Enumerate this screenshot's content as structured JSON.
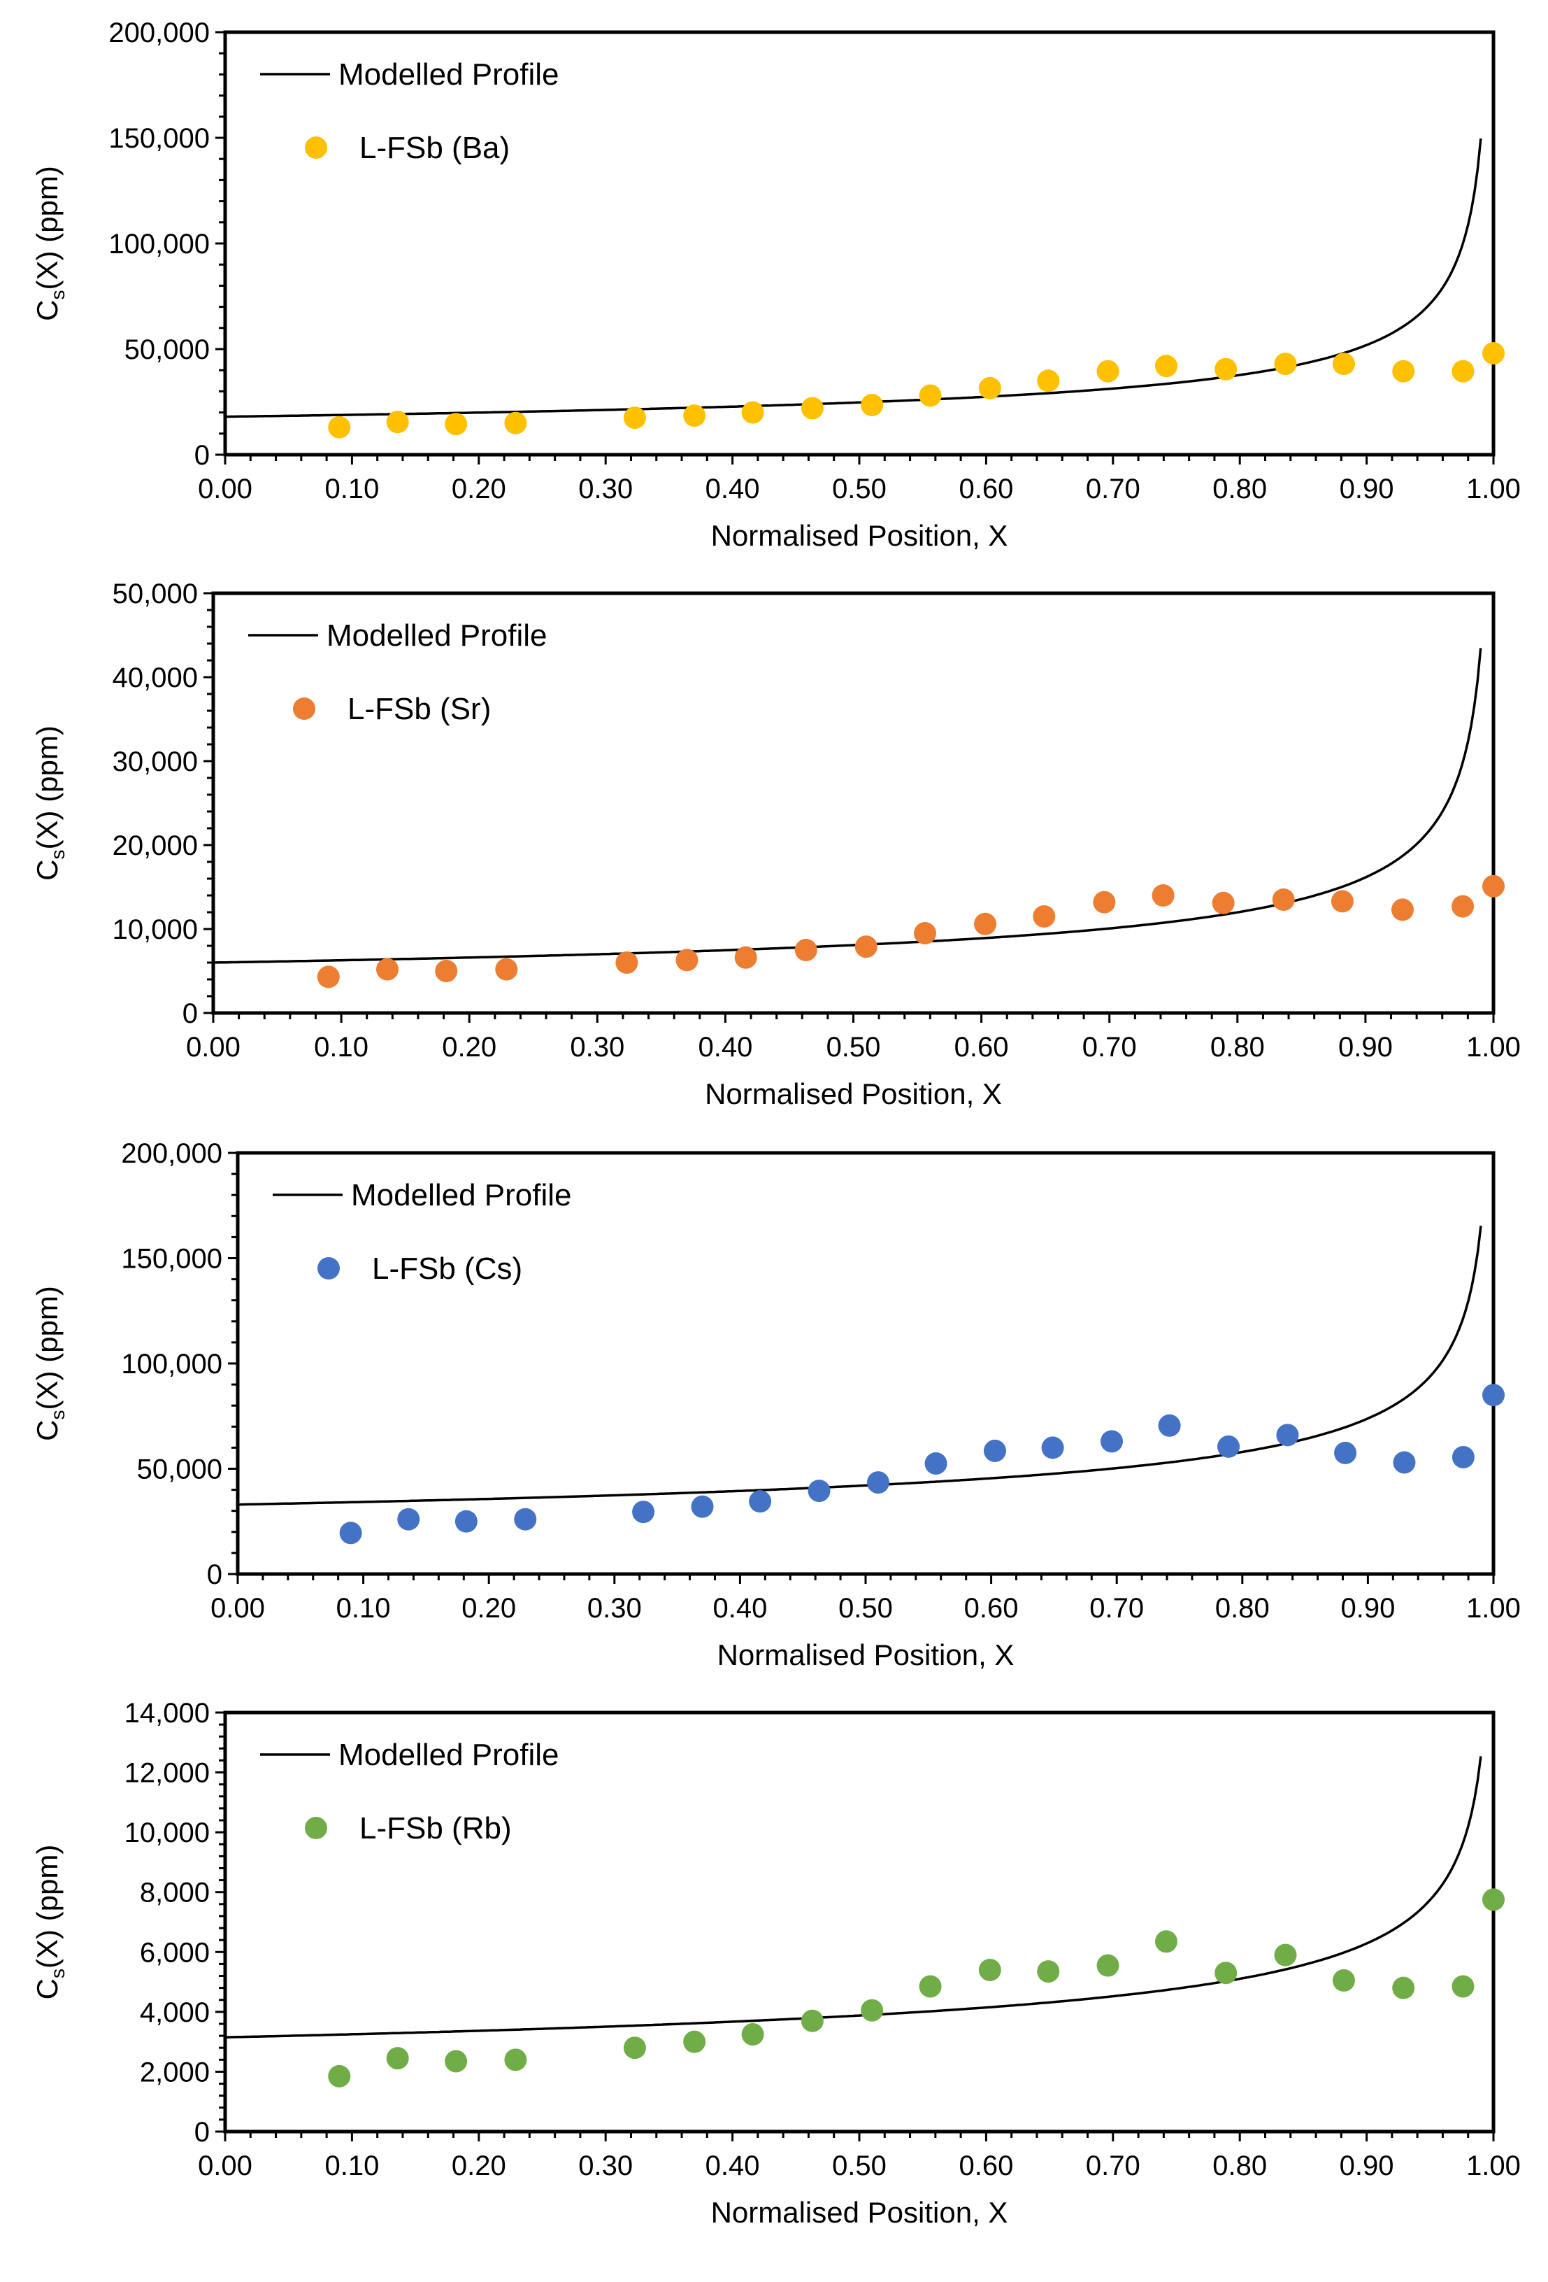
{
  "chart_data": [
    {
      "type": "scatter",
      "title": "",
      "xlabel": "Normalised Position, X",
      "ylabel": {
        "main": "C",
        "sub": "s",
        "rest": "(X) (ppm)"
      },
      "xlim": [
        0,
        1
      ],
      "ylim": [
        0,
        200000
      ],
      "xticks": [
        0,
        0.1,
        0.2,
        0.3,
        0.4,
        0.5,
        0.6,
        0.7,
        0.8,
        0.9,
        1.0
      ],
      "xtick_labels": [
        "0.00",
        "0.10",
        "0.20",
        "0.30",
        "0.40",
        "0.50",
        "0.60",
        "0.70",
        "0.80",
        "0.90",
        "1.00"
      ],
      "yticks": [
        0,
        50000,
        100000,
        150000,
        200000
      ],
      "ytick_labels": [
        "0",
        "50,000",
        "100,000",
        "150,000",
        "200,000"
      ],
      "grid": false,
      "legend": {
        "position": "top-left",
        "line_label": "Modelled Profile",
        "marker_label": "L-FSb (Ba)"
      },
      "marker_color": "#FFC000",
      "line_color": "#000000",
      "model": {
        "c0": 18000,
        "k": 0.54,
        "x_max": 0.99
      },
      "series": [
        {
          "name": "Modelled Profile",
          "kind": "line"
        },
        {
          "name": "L-FSb (Ba)",
          "kind": "scatter",
          "x": [
            0.09,
            0.136,
            0.182,
            0.229,
            0.323,
            0.37,
            0.416,
            0.463,
            0.51,
            0.556,
            0.603,
            0.649,
            0.696,
            0.742,
            0.789,
            0.836,
            0.882,
            0.929,
            0.976,
            1.0
          ],
          "y": [
            13000,
            15500,
            14500,
            15000,
            17500,
            18500,
            20000,
            22000,
            23500,
            28000,
            31500,
            35000,
            39500,
            42000,
            40500,
            43000,
            43000,
            39500,
            39500,
            48000
          ]
        }
      ]
    },
    {
      "type": "scatter",
      "title": "",
      "xlabel": "Normalised Position, X",
      "ylabel": {
        "main": "C",
        "sub": "s",
        "rest": "(X) (ppm)"
      },
      "xlim": [
        0,
        1
      ],
      "ylim": [
        0,
        50000
      ],
      "xticks": [
        0,
        0.1,
        0.2,
        0.3,
        0.4,
        0.5,
        0.6,
        0.7,
        0.8,
        0.9,
        1.0
      ],
      "xtick_labels": [
        "0.00",
        "0.10",
        "0.20",
        "0.30",
        "0.40",
        "0.50",
        "0.60",
        "0.70",
        "0.80",
        "0.90",
        "1.00"
      ],
      "yticks": [
        0,
        10000,
        20000,
        30000,
        40000,
        50000
      ],
      "ytick_labels": [
        "0",
        "10,000",
        "20,000",
        "30,000",
        "40,000",
        "50,000"
      ],
      "grid": false,
      "legend": {
        "position": "top-left",
        "line_label": "Modelled Profile",
        "marker_label": "L-FSb (Sr)"
      },
      "marker_color": "#ED7D31",
      "line_color": "#000000",
      "model": {
        "c0": 6000,
        "k": 0.57,
        "x_max": 0.99
      },
      "series": [
        {
          "name": "Modelled Profile",
          "kind": "line"
        },
        {
          "name": "L-FSb (Sr)",
          "kind": "scatter",
          "x": [
            0.09,
            0.136,
            0.182,
            0.229,
            0.323,
            0.37,
            0.416,
            0.463,
            0.51,
            0.556,
            0.603,
            0.649,
            0.696,
            0.742,
            0.789,
            0.836,
            0.882,
            0.929,
            0.976,
            1.0
          ],
          "y": [
            4300,
            5200,
            5000,
            5200,
            6000,
            6300,
            6600,
            7500,
            7900,
            9500,
            10600,
            11500,
            13200,
            14000,
            13100,
            13500,
            13300,
            12300,
            12700,
            15100
          ]
        }
      ]
    },
    {
      "type": "scatter",
      "title": "",
      "xlabel": "Normalised Position, X",
      "ylabel": {
        "main": "C",
        "sub": "s",
        "rest": "(X) (ppm)"
      },
      "xlim": [
        0,
        1
      ],
      "ylim": [
        0,
        200000
      ],
      "xticks": [
        0,
        0.1,
        0.2,
        0.3,
        0.4,
        0.5,
        0.6,
        0.7,
        0.8,
        0.9,
        1.0
      ],
      "xtick_labels": [
        "0.00",
        "0.10",
        "0.20",
        "0.30",
        "0.40",
        "0.50",
        "0.60",
        "0.70",
        "0.80",
        "0.90",
        "1.00"
      ],
      "yticks": [
        0,
        50000,
        100000,
        150000,
        200000
      ],
      "ytick_labels": [
        "0",
        "50,000",
        "100,000",
        "150,000",
        "200,000"
      ],
      "grid": false,
      "legend": {
        "position": "top-left",
        "line_label": "Modelled Profile",
        "marker_label": "L-FSb (Cs)"
      },
      "marker_color": "#4472C4",
      "line_color": "#000000",
      "model": {
        "c0": 33000,
        "k": 0.65,
        "x_max": 0.99
      },
      "series": [
        {
          "name": "Modelled Profile",
          "kind": "line"
        },
        {
          "name": "L-FSb (Cs)",
          "kind": "scatter",
          "x": [
            0.09,
            0.136,
            0.182,
            0.229,
            0.323,
            0.37,
            0.416,
            0.463,
            0.51,
            0.556,
            0.603,
            0.649,
            0.696,
            0.742,
            0.789,
            0.836,
            0.882,
            0.929,
            0.976,
            1.0
          ],
          "y": [
            19500,
            26000,
            25000,
            26000,
            29500,
            32000,
            34500,
            39500,
            43500,
            52500,
            58500,
            60000,
            63000,
            70500,
            60500,
            66000,
            57500,
            53000,
            55500,
            85000
          ]
        }
      ]
    },
    {
      "type": "scatter",
      "title": "",
      "xlabel": "Normalised Position, X",
      "ylabel": {
        "main": "C",
        "sub": "s",
        "rest": "(X) (ppm)"
      },
      "xlim": [
        0,
        1
      ],
      "ylim": [
        0,
        14000
      ],
      "xticks": [
        0,
        0.1,
        0.2,
        0.3,
        0.4,
        0.5,
        0.6,
        0.7,
        0.8,
        0.9,
        1.0
      ],
      "xtick_labels": [
        "0.00",
        "0.10",
        "0.20",
        "0.30",
        "0.40",
        "0.50",
        "0.60",
        "0.70",
        "0.80",
        "0.90",
        "1.00"
      ],
      "yticks": [
        0,
        2000,
        4000,
        6000,
        8000,
        10000,
        12000,
        14000
      ],
      "ytick_labels": [
        "0",
        "2,000",
        "4,000",
        "6,000",
        "8,000",
        "10,000",
        "12,000",
        "14,000"
      ],
      "grid": false,
      "legend": {
        "position": "top-left",
        "line_label": "Modelled Profile",
        "marker_label": "L-FSb (Rb)"
      },
      "marker_color": "#70AD47",
      "line_color": "#000000",
      "model": {
        "c0": 3150,
        "k": 0.7,
        "x_max": 0.99
      },
      "series": [
        {
          "name": "Modelled Profile",
          "kind": "line"
        },
        {
          "name": "L-FSb (Rb)",
          "kind": "scatter",
          "x": [
            0.09,
            0.136,
            0.182,
            0.229,
            0.323,
            0.37,
            0.416,
            0.463,
            0.51,
            0.556,
            0.603,
            0.649,
            0.696,
            0.742,
            0.789,
            0.836,
            0.882,
            0.929,
            0.976,
            1.0
          ],
          "y": [
            1850,
            2450,
            2350,
            2400,
            2800,
            3000,
            3250,
            3700,
            4050,
            4850,
            5400,
            5350,
            5550,
            6350,
            5300,
            5900,
            5050,
            4800,
            4850,
            7750
          ]
        }
      ]
    }
  ]
}
